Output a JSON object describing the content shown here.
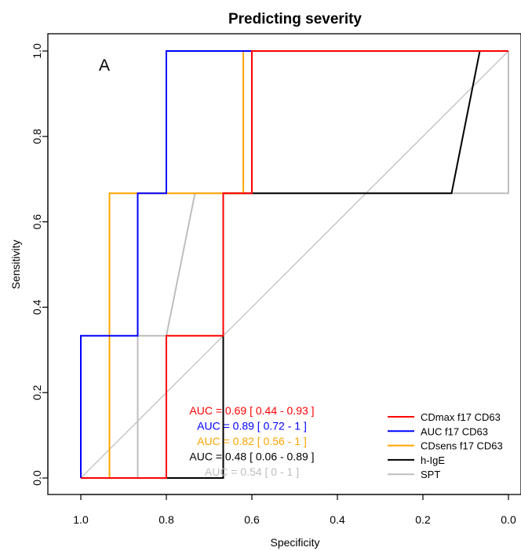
{
  "chart_data": {
    "type": "line",
    "title": "Predicting severity",
    "panel_label": "A",
    "xlabel": "Specificity",
    "ylabel": "Sensitivity",
    "xlim": [
      1.0,
      0.0
    ],
    "ylim": [
      0.0,
      1.0
    ],
    "x_reversed": true,
    "grid": false,
    "xticks": [
      1.0,
      0.8,
      0.6,
      0.4,
      0.2,
      0.0
    ],
    "xtick_labels": [
      "1.0",
      "0.8",
      "0.6",
      "0.4",
      "0.2",
      "0.0"
    ],
    "yticks": [
      0.0,
      0.2,
      0.4,
      0.6,
      0.8,
      1.0
    ],
    "ytick_labels": [
      "0.0",
      "0.2",
      "0.4",
      "0.6",
      "0.8",
      "1.0"
    ],
    "reference_line": {
      "color": "#b0b0b0",
      "from": [
        1.0,
        0.0
      ],
      "to": [
        0.0,
        1.0
      ]
    },
    "legend_position": "bottom-right",
    "series": [
      {
        "name": "CDmax f17 CD63",
        "color": "#ff0000",
        "points": [
          [
            1.0,
            0.0
          ],
          [
            0.8,
            0.0
          ],
          [
            0.8,
            0.333
          ],
          [
            0.667,
            0.333
          ],
          [
            0.667,
            0.667
          ],
          [
            0.6,
            0.667
          ],
          [
            0.6,
            1.0
          ],
          [
            0.0,
            1.0
          ]
        ],
        "auc_label": "AUC = 0.69 [ 0.44 - 0.93 ]"
      },
      {
        "name": "AUC f17 CD63",
        "color": "#0000ff",
        "points": [
          [
            1.0,
            0.0
          ],
          [
            1.0,
            0.333
          ],
          [
            0.867,
            0.333
          ],
          [
            0.867,
            0.667
          ],
          [
            0.8,
            0.667
          ],
          [
            0.8,
            1.0
          ],
          [
            0.0,
            1.0
          ]
        ],
        "auc_label": "AUC = 0.89 [ 0.72 - 1 ]"
      },
      {
        "name": "CDsens f17 CD63",
        "color": "#ffa500",
        "points": [
          [
            1.0,
            0.0
          ],
          [
            0.933,
            0.0
          ],
          [
            0.933,
            0.667
          ],
          [
            0.733,
            0.667
          ],
          [
            0.62,
            0.667
          ],
          [
            0.62,
            1.0
          ],
          [
            0.0,
            1.0
          ]
        ],
        "auc_label": "AUC = 0.82 [ 0.56 - 1 ]"
      },
      {
        "name": "h-IgE",
        "color": "#000000",
        "points": [
          [
            1.0,
            0.0
          ],
          [
            0.667,
            0.0
          ],
          [
            0.667,
            0.667
          ],
          [
            0.133,
            0.667
          ],
          [
            0.067,
            1.0
          ],
          [
            0.0,
            1.0
          ]
        ],
        "auc_label": "AUC = 0.48 [ 0.06 - 0.89 ]"
      },
      {
        "name": "SPT",
        "color": "#bebebe",
        "points": [
          [
            1.0,
            0.0
          ],
          [
            0.867,
            0.0
          ],
          [
            0.867,
            0.333
          ],
          [
            0.8,
            0.333
          ],
          [
            0.733,
            0.667
          ],
          [
            0.0,
            0.667
          ],
          [
            0.0,
            1.0
          ]
        ],
        "auc_label": "AUC = 0.54 [ 0 - 1 ]"
      }
    ]
  }
}
